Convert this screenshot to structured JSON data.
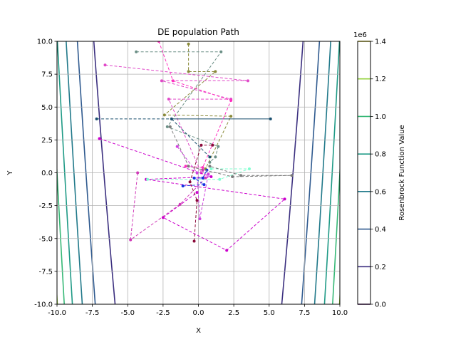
{
  "chart_data": {
    "type": "line",
    "title": "DE population Path",
    "xlabel": "X",
    "ylabel": "Y",
    "xlim": [
      -10,
      10
    ],
    "ylim": [
      -10,
      10
    ],
    "x_ticks": [
      "-10.0",
      "-7.5",
      "-5.0",
      "-2.5",
      "0.0",
      "2.5",
      "5.0",
      "7.5",
      "10.0"
    ],
    "y_ticks": [
      "-10.0",
      "-7.5",
      "-5.0",
      "-2.5",
      "0.0",
      "2.5",
      "5.0",
      "7.5",
      "10.0"
    ],
    "grid": true,
    "contour": {
      "function": "Rosenbrock",
      "levels": [
        0.2,
        0.4,
        0.6,
        0.8,
        1.0,
        1.2,
        1.4
      ],
      "level_unit_multiplier": 1000000,
      "level_colors": [
        "#3b2f7f",
        "#2f5a8f",
        "#21798a",
        "#1f9a86",
        "#36b876",
        "#95d23e",
        "#f4e321"
      ]
    },
    "colorbar": {
      "label": "Rosenbrock Function Value",
      "offset_text": "1e6",
      "ticks": [
        "0.0",
        "0.2",
        "0.4",
        "0.6",
        "0.8",
        "1.0",
        "1.2",
        "1.4"
      ],
      "tick_colors": [
        "#44005a",
        "#3b2f7f",
        "#2f5a8f",
        "#21798a",
        "#1f9a86",
        "#36b876",
        "#95d23e",
        "#f4e321"
      ]
    },
    "series": [
      {
        "color": "#6b8f86",
        "x": [
          -4.4,
          1.6,
          -2.2,
          1.4,
          1.2,
          0.8
        ],
        "y": [
          9.2,
          9.2,
          3.5,
          2.0,
          1.2,
          0.8
        ]
      },
      {
        "color": "#8a8a3a",
        "x": [
          -0.7,
          -0.7,
          1.2,
          -2.4,
          2.3,
          0.5
        ],
        "y": [
          9.8,
          7.7,
          7.7,
          4.4,
          4.3,
          0.3
        ]
      },
      {
        "color": "#e048c8",
        "x": [
          -6.6,
          3.5,
          -2.6,
          2.3,
          -2.1,
          0.2
        ],
        "y": [
          8.2,
          7.0,
          7.0,
          5.6,
          5.6,
          0.0
        ]
      },
      {
        "color": "#1a4f6e",
        "x": [
          -7.2,
          5.1,
          -1.9,
          0.8
        ],
        "y": [
          4.1,
          4.1,
          4.1,
          1.2
        ]
      },
      {
        "color": "#ff2fbf",
        "x": [
          -2.8,
          -1.8,
          2.3,
          0.3,
          -0.9
        ],
        "y": [
          10.0,
          7.0,
          5.5,
          0.4,
          0.5
        ]
      },
      {
        "color": "#cc00cc",
        "x": [
          -7.0,
          0.9,
          -3.7,
          6.1,
          2.0,
          -2.5,
          -0.1
        ],
        "y": [
          2.6,
          -0.3,
          -0.5,
          -2.0,
          -5.9,
          -3.4,
          -1.5
        ]
      },
      {
        "color": "#d03ab8",
        "x": [
          -4.3,
          -4.8,
          -1.3,
          0.5,
          0.3
        ],
        "y": [
          0.0,
          -5.1,
          -2.4,
          -0.4,
          0.2
        ]
      },
      {
        "color": "#8b0a3a",
        "x": [
          -0.3,
          -0.1,
          -0.6,
          0.2,
          1.0
        ],
        "y": [
          -5.2,
          -2.1,
          -0.7,
          2.1,
          2.1
        ]
      },
      {
        "color": "#80ffd0",
        "x": [
          -3.6,
          1.5,
          3.6,
          0.9
        ],
        "y": [
          -0.5,
          -0.5,
          0.3,
          0.3
        ]
      },
      {
        "color": "#1530e0",
        "x": [
          -1.1,
          0.4,
          -0.3,
          0.3,
          0.6
        ],
        "y": [
          -1.0,
          -0.9,
          -0.4,
          -0.4,
          0.2
        ]
      },
      {
        "color": "#7a7a7a",
        "x": [
          -2.0,
          -0.7,
          2.4,
          6.6,
          3.0,
          0.8
        ],
        "y": [
          3.5,
          0.5,
          -0.3,
          -0.2,
          -0.2,
          0.5
        ]
      },
      {
        "color": "#d040e0",
        "x": [
          -1.5,
          -0.1,
          0.1,
          0.7
        ],
        "y": [
          2.0,
          0.0,
          -3.5,
          -0.1
        ]
      }
    ]
  }
}
